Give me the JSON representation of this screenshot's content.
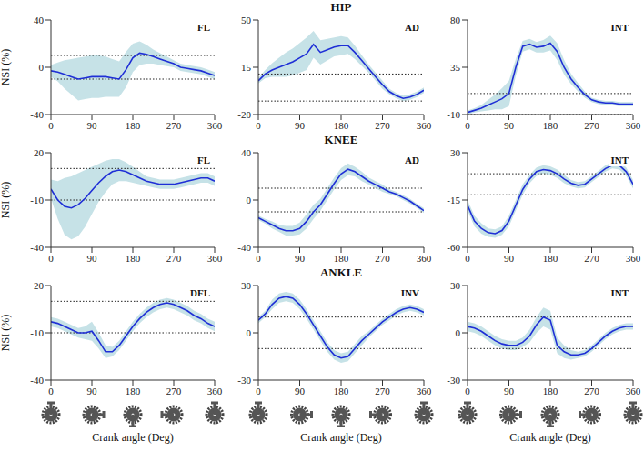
{
  "chart_data": [
    {
      "type": "line",
      "title": "FL",
      "y_label": "NSI (%)",
      "color": "#1f2fd6",
      "x": [
        0,
        15,
        30,
        45,
        60,
        75,
        90,
        105,
        120,
        135,
        150,
        165,
        180,
        195,
        210,
        225,
        240,
        255,
        270,
        285,
        300,
        315,
        330,
        345,
        360
      ],
      "values": [
        -3,
        -4,
        -6,
        -8,
        -10,
        -9,
        -8,
        -8,
        -8,
        -9,
        -10,
        -2,
        8,
        12,
        11,
        9,
        7,
        5,
        3,
        0,
        -1,
        -2,
        -3,
        -5,
        -7
      ],
      "sd": [
        5,
        8,
        12,
        15,
        18,
        18,
        18,
        18,
        17,
        16,
        15,
        15,
        12,
        10,
        8,
        6,
        5,
        4,
        3,
        3,
        3,
        3,
        3,
        3,
        3
      ],
      "xlim": [
        0,
        360
      ],
      "xticks": [
        0,
        90,
        180,
        270,
        360
      ],
      "ylim": [
        -40,
        40
      ],
      "yticks": [
        -40,
        0,
        40
      ],
      "reference_lines": [
        10,
        -10
      ]
    },
    {
      "type": "line",
      "title": "AD",
      "annotations": [
        {
          "text": "HIP"
        }
      ],
      "color": "#1f2fd6",
      "x": [
        0,
        15,
        30,
        45,
        60,
        75,
        90,
        105,
        120,
        135,
        150,
        165,
        180,
        195,
        210,
        225,
        240,
        255,
        270,
        285,
        300,
        315,
        330,
        345,
        360
      ],
      "values": [
        5,
        10,
        13,
        15,
        17,
        19,
        22,
        25,
        32,
        26,
        28,
        30,
        31,
        31,
        26,
        20,
        14,
        8,
        2,
        -3,
        -6,
        -8,
        -7,
        -5,
        -2
      ],
      "sd": [
        2,
        3,
        5,
        7,
        9,
        10,
        11,
        12,
        10,
        9,
        8,
        7,
        7,
        6,
        5,
        4,
        3,
        3,
        3,
        2,
        2,
        2,
        2,
        2,
        2
      ],
      "xlim": [
        0,
        360
      ],
      "xticks": [
        0,
        90,
        180,
        270,
        360
      ],
      "ylim": [
        -20,
        50
      ],
      "yticks": [
        -20,
        15,
        50
      ],
      "reference_lines": [
        10,
        -10
      ]
    },
    {
      "type": "line",
      "title": "INT",
      "color": "#1f2fd6",
      "x": [
        0,
        15,
        30,
        45,
        60,
        75,
        90,
        105,
        120,
        135,
        150,
        165,
        180,
        195,
        210,
        225,
        240,
        255,
        270,
        285,
        300,
        315,
        330,
        345,
        360
      ],
      "values": [
        -8,
        -6,
        -4,
        -1,
        2,
        5,
        10,
        35,
        55,
        57,
        54,
        55,
        58,
        50,
        35,
        24,
        16,
        9,
        4,
        2,
        1,
        1,
        0,
        0,
        0
      ],
      "sd": [
        2,
        2,
        3,
        5,
        7,
        10,
        12,
        8,
        5,
        5,
        5,
        6,
        7,
        8,
        7,
        5,
        4,
        3,
        2,
        2,
        2,
        2,
        2,
        2,
        2
      ],
      "xlim": [
        0,
        360
      ],
      "xticks": [
        0,
        90,
        180,
        270,
        360
      ],
      "ylim": [
        -10,
        80
      ],
      "yticks": [
        -10,
        35,
        80
      ],
      "reference_lines": [
        10,
        -10
      ]
    },
    {
      "type": "line",
      "title": "FL",
      "y_label": "NSI (%)",
      "color": "#1f2fd6",
      "x": [
        0,
        15,
        30,
        45,
        60,
        75,
        90,
        105,
        120,
        135,
        150,
        165,
        180,
        195,
        210,
        225,
        240,
        255,
        270,
        285,
        300,
        315,
        330,
        345,
        360
      ],
      "values": [
        -3,
        -10,
        -14,
        -15,
        -13,
        -9,
        -4,
        1,
        5,
        8,
        9,
        8,
        6,
        4,
        2,
        1,
        0,
        0,
        0,
        1,
        2,
        3,
        4,
        4,
        2
      ],
      "sd": [
        6,
        12,
        18,
        20,
        20,
        18,
        15,
        12,
        10,
        8,
        7,
        6,
        5,
        4,
        3,
        3,
        3,
        3,
        3,
        3,
        3,
        3,
        3,
        3,
        3
      ],
      "xlim": [
        0,
        360
      ],
      "xticks": [
        0,
        90,
        180,
        270,
        360
      ],
      "ylim": [
        -40,
        20
      ],
      "yticks": [
        -40,
        -10,
        20
      ],
      "reference_lines": [
        10,
        -10
      ]
    },
    {
      "type": "line",
      "title": "AD",
      "annotations": [
        {
          "text": "KNEE"
        }
      ],
      "color": "#1f2fd6",
      "x": [
        0,
        15,
        30,
        45,
        60,
        75,
        90,
        105,
        120,
        135,
        150,
        165,
        180,
        195,
        210,
        225,
        240,
        255,
        270,
        285,
        300,
        315,
        330,
        345,
        360
      ],
      "values": [
        -15,
        -18,
        -21,
        -24,
        -26,
        -26,
        -24,
        -18,
        -10,
        -4,
        5,
        14,
        22,
        26,
        24,
        20,
        16,
        13,
        10,
        7,
        5,
        2,
        -1,
        -5,
        -9
      ],
      "sd": [
        2,
        2,
        3,
        3,
        4,
        4,
        5,
        6,
        6,
        5,
        5,
        5,
        5,
        5,
        4,
        4,
        3,
        3,
        3,
        2,
        2,
        2,
        2,
        2,
        2
      ],
      "xlim": [
        0,
        360
      ],
      "xticks": [
        0,
        90,
        180,
        270,
        360
      ],
      "ylim": [
        -40,
        40
      ],
      "yticks": [
        -40,
        0,
        40
      ],
      "reference_lines": [
        10,
        -10
      ]
    },
    {
      "type": "line",
      "title": "INT",
      "color": "#1f2fd6",
      "x": [
        0,
        15,
        30,
        45,
        60,
        75,
        90,
        105,
        120,
        135,
        150,
        165,
        180,
        195,
        210,
        225,
        240,
        255,
        270,
        285,
        300,
        315,
        330,
        345,
        360
      ],
      "values": [
        -20,
        -35,
        -42,
        -46,
        -47,
        -44,
        -35,
        -20,
        -5,
        5,
        12,
        14,
        13,
        10,
        5,
        1,
        -1,
        0,
        5,
        10,
        15,
        18,
        18,
        12,
        0
      ],
      "sd": [
        5,
        5,
        5,
        4,
        4,
        4,
        5,
        5,
        5,
        4,
        4,
        4,
        4,
        4,
        4,
        3,
        3,
        3,
        3,
        3,
        3,
        3,
        4,
        4,
        4
      ],
      "xlim": [
        0,
        360
      ],
      "xticks": [
        0,
        90,
        180,
        270,
        360
      ],
      "ylim": [
        -60,
        30
      ],
      "yticks": [
        -60,
        -15,
        30
      ],
      "reference_lines": [
        10,
        -10
      ]
    },
    {
      "type": "line",
      "title": "DFL",
      "y_label": "NSI (%)",
      "x_label": "Crank angle (Deg)",
      "color": "#1f2fd6",
      "x": [
        0,
        15,
        30,
        45,
        60,
        75,
        90,
        105,
        120,
        135,
        150,
        165,
        180,
        195,
        210,
        225,
        240,
        255,
        270,
        285,
        300,
        315,
        330,
        345,
        360
      ],
      "values": [
        -3,
        -4,
        -6,
        -8,
        -10,
        -10,
        -9,
        -15,
        -22,
        -22,
        -18,
        -12,
        -6,
        -1,
        3,
        6,
        8,
        9,
        8,
        6,
        4,
        1,
        -1,
        -4,
        -6
      ],
      "sd": [
        3,
        3,
        3,
        3,
        3,
        4,
        6,
        5,
        4,
        3,
        3,
        3,
        3,
        3,
        3,
        3,
        3,
        3,
        3,
        3,
        3,
        3,
        3,
        3,
        3
      ],
      "xlim": [
        0,
        360
      ],
      "xticks": [
        0,
        90,
        180,
        270,
        360
      ],
      "ylim": [
        -40,
        20
      ],
      "yticks": [
        -40,
        -10,
        20
      ],
      "reference_lines": [
        10,
        -10
      ]
    },
    {
      "type": "line",
      "title": "INV",
      "annotations": [
        {
          "text": "ANKLE"
        }
      ],
      "x_label": "Crank angle (Deg)",
      "color": "#1f2fd6",
      "x": [
        0,
        15,
        30,
        45,
        60,
        75,
        90,
        105,
        120,
        135,
        150,
        165,
        180,
        195,
        210,
        225,
        240,
        255,
        270,
        285,
        300,
        315,
        330,
        345,
        360
      ],
      "values": [
        8,
        12,
        18,
        22,
        23,
        22,
        18,
        12,
        5,
        -2,
        -9,
        -14,
        -16,
        -15,
        -10,
        -5,
        -1,
        3,
        7,
        10,
        13,
        15,
        16,
        15,
        13
      ],
      "sd": [
        2,
        2,
        3,
        3,
        3,
        3,
        3,
        3,
        3,
        3,
        3,
        3,
        3,
        3,
        3,
        3,
        2,
        2,
        2,
        2,
        2,
        2,
        2,
        2,
        2
      ],
      "xlim": [
        0,
        360
      ],
      "xticks": [
        0,
        90,
        180,
        270,
        360
      ],
      "ylim": [
        -30,
        30
      ],
      "yticks": [
        -30,
        0,
        30
      ],
      "reference_lines": [
        10,
        -10
      ]
    },
    {
      "type": "line",
      "title": "INT",
      "x_label": "Crank angle (Deg)",
      "color": "#1f2fd6",
      "x": [
        0,
        15,
        30,
        45,
        60,
        75,
        90,
        105,
        120,
        135,
        150,
        165,
        180,
        195,
        210,
        225,
        240,
        255,
        270,
        285,
        300,
        315,
        330,
        345,
        360
      ],
      "values": [
        4,
        3,
        1,
        -2,
        -5,
        -7,
        -8,
        -8,
        -6,
        -2,
        5,
        10,
        8,
        -8,
        -12,
        -14,
        -14,
        -13,
        -10,
        -6,
        -2,
        1,
        3,
        4,
        4
      ],
      "sd": [
        3,
        3,
        3,
        3,
        3,
        3,
        3,
        3,
        3,
        4,
        5,
        6,
        6,
        5,
        4,
        3,
        2,
        2,
        2,
        2,
        2,
        2,
        2,
        2,
        2
      ],
      "xlim": [
        0,
        360
      ],
      "xticks": [
        0,
        90,
        180,
        270,
        360
      ],
      "ylim": [
        -30,
        30
      ],
      "yticks": [
        -30,
        0,
        30
      ],
      "reference_lines": [
        10,
        -10
      ]
    }
  ]
}
